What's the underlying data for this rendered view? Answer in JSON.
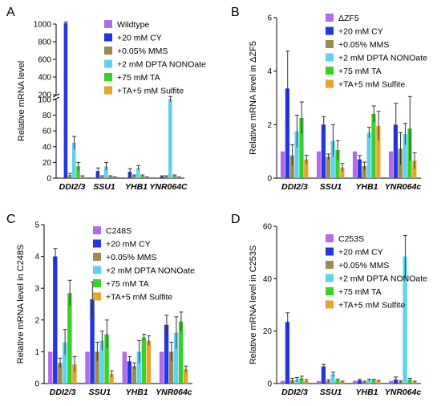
{
  "colors": {
    "purple": "#b36aeb",
    "blue": "#2535e0",
    "olive": "#9a8c4f",
    "cyan": "#5fd3ee",
    "green": "#3ad02a",
    "orange": "#e6a52a"
  },
  "chart_data": [
    {
      "panel_label": "A",
      "type": "bar",
      "ylabel": "Relative mRNA level",
      "categories": [
        "DDI2/3",
        "SSU1",
        "YHB1",
        "YNR064C"
      ],
      "y_ticks": [
        0,
        20,
        40,
        60,
        80,
        100,
        200,
        400,
        600,
        800,
        1000
      ],
      "axis_break": {
        "lower": [
          0,
          100
        ],
        "upper": [
          200,
          1000
        ]
      },
      "series": [
        {
          "name": "Wildtype",
          "color": "#b36aeb",
          "values": [
            1,
            1,
            1,
            1
          ],
          "errors": [
            0,
            0,
            0,
            0
          ]
        },
        {
          "name": "+20 mM CY",
          "color": "#2535e0",
          "values": [
            1010,
            9,
            8,
            2
          ],
          "errors": [
            15,
            4,
            4,
            1
          ]
        },
        {
          "name": "+0.05% MMS",
          "color": "#9a8c4f",
          "values": [
            4,
            2,
            3,
            2
          ],
          "errors": [
            2,
            1,
            1,
            1
          ]
        },
        {
          "name": "+2 mM DPTA NONOate",
          "color": "#5fd3ee",
          "values": [
            45,
            15,
            13,
            150
          ],
          "errors": [
            8,
            5,
            3,
            30
          ]
        },
        {
          "name": "+75 mM TA",
          "color": "#3ad02a",
          "values": [
            15,
            2,
            3,
            3
          ],
          "errors": [
            5,
            1,
            1,
            1
          ]
        },
        {
          "name": "+TA+5 mM Sulfite",
          "color": "#e6a52a",
          "values": [
            2,
            1,
            1,
            1
          ],
          "errors": [
            1,
            0.5,
            0.5,
            0.5
          ]
        }
      ]
    },
    {
      "panel_label": "B",
      "type": "bar",
      "ylabel": "Relative mRNA level in ΔZF5",
      "categories": [
        "DDI2/3",
        "SSU1",
        "YHB1",
        "YNR064c"
      ],
      "ylim": [
        0,
        6
      ],
      "y_ticks": [
        0,
        2,
        4,
        6
      ],
      "series": [
        {
          "name": "ΔZF5",
          "color": "#b36aeb",
          "values": [
            1,
            1,
            1,
            1
          ],
          "errors": [
            0,
            0,
            0,
            0
          ]
        },
        {
          "name": "+20 mM CY",
          "color": "#2535e0",
          "values": [
            3.35,
            2.0,
            0.7,
            2.0
          ],
          "errors": [
            1.4,
            0.3,
            0.15,
            0.8
          ]
        },
        {
          "name": "+0.05% MMS",
          "color": "#9a8c4f",
          "values": [
            0.85,
            0.8,
            0.45,
            1.1
          ],
          "errors": [
            0.4,
            0.1,
            0.15,
            0.6
          ]
        },
        {
          "name": "+2 mM DPTA NONOate",
          "color": "#5fd3ee",
          "values": [
            1.75,
            1.4,
            1.7,
            1.65
          ],
          "errors": [
            0.6,
            0.6,
            0.2,
            0.4
          ]
        },
        {
          "name": "+75 mM TA",
          "color": "#3ad02a",
          "values": [
            2.25,
            1.05,
            2.4,
            1.85
          ],
          "errors": [
            0.6,
            0.35,
            0.3,
            1.2
          ]
        },
        {
          "name": "+TA+5 mM Sulfite",
          "color": "#e6a52a",
          "values": [
            0.7,
            0.4,
            1.95,
            0.65
          ],
          "errors": [
            0.15,
            0.15,
            0.55,
            0.3
          ]
        }
      ]
    },
    {
      "panel_label": "C",
      "type": "bar",
      "ylabel": "Relative mRNA level in C248S",
      "categories": [
        "DDI2/3",
        "SSU1",
        "YHB1",
        "YNR064c"
      ],
      "ylim": [
        0,
        5
      ],
      "y_ticks": [
        0,
        1,
        2,
        3,
        4,
        5
      ],
      "series": [
        {
          "name": "C248S",
          "color": "#b36aeb",
          "values": [
            1,
            1,
            1,
            1
          ],
          "errors": [
            0,
            0,
            0,
            0
          ]
        },
        {
          "name": "+20 mM CY",
          "color": "#2535e0",
          "values": [
            4.0,
            2.65,
            0.7,
            1.85
          ],
          "errors": [
            0.25,
            0.55,
            0.15,
            0.3
          ]
        },
        {
          "name": "+0.05% MMS",
          "color": "#9a8c4f",
          "values": [
            0.65,
            1.0,
            0.55,
            1.0
          ],
          "errors": [
            0.15,
            0.3,
            0.1,
            0.3
          ]
        },
        {
          "name": "+2 mM DPTA NONOate",
          "color": "#5fd3ee",
          "values": [
            1.3,
            1.35,
            1.0,
            1.6
          ],
          "errors": [
            0.4,
            0.3,
            0.35,
            0.5
          ]
        },
        {
          "name": "+75 mM TA",
          "color": "#3ad02a",
          "values": [
            2.85,
            1.55,
            1.45,
            1.95
          ],
          "errors": [
            0.4,
            0.45,
            0.1,
            0.3
          ]
        },
        {
          "name": "+TA+5 mM Sulfite",
          "color": "#e6a52a",
          "values": [
            0.6,
            0.3,
            1.35,
            0.45
          ],
          "errors": [
            0.25,
            0.1,
            0.15,
            0.1
          ]
        }
      ]
    },
    {
      "panel_label": "D",
      "type": "bar",
      "ylabel": "Relative mRNA level in C253S",
      "categories": [
        "DDI2/3",
        "SSU1",
        "YHB1",
        "YNR064c"
      ],
      "ylim": [
        0,
        60
      ],
      "y_ticks": [
        0,
        20,
        40,
        60
      ],
      "series": [
        {
          "name": "C253S",
          "color": "#b36aeb",
          "values": [
            1,
            1,
            1,
            1
          ],
          "errors": [
            0,
            0,
            0,
            0
          ]
        },
        {
          "name": "+20 mM CY",
          "color": "#2535e0",
          "values": [
            23.5,
            6.5,
            1.2,
            1.5
          ],
          "errors": [
            3.5,
            0.8,
            0.4,
            1.0
          ]
        },
        {
          "name": "+0.05% MMS",
          "color": "#9a8c4f",
          "values": [
            1.2,
            1.0,
            0.6,
            0.7
          ],
          "errors": [
            0.8,
            0.4,
            0.3,
            0.3
          ]
        },
        {
          "name": "+2 mM DPTA NONOate",
          "color": "#5fd3ee",
          "values": [
            1.5,
            3.5,
            1.3,
            48.5
          ],
          "errors": [
            0.8,
            0.8,
            0.4,
            8.0
          ]
        },
        {
          "name": "+75 mM TA",
          "color": "#3ad02a",
          "values": [
            2.0,
            1.3,
            1.3,
            1.5
          ],
          "errors": [
            0.8,
            0.4,
            0.3,
            0.5
          ]
        },
        {
          "name": "+TA+5 mM Sulfite",
          "color": "#e6a52a",
          "values": [
            1.0,
            0.6,
            0.9,
            0.6
          ],
          "errors": [
            0.5,
            0.3,
            0.3,
            0.3
          ]
        }
      ]
    }
  ]
}
